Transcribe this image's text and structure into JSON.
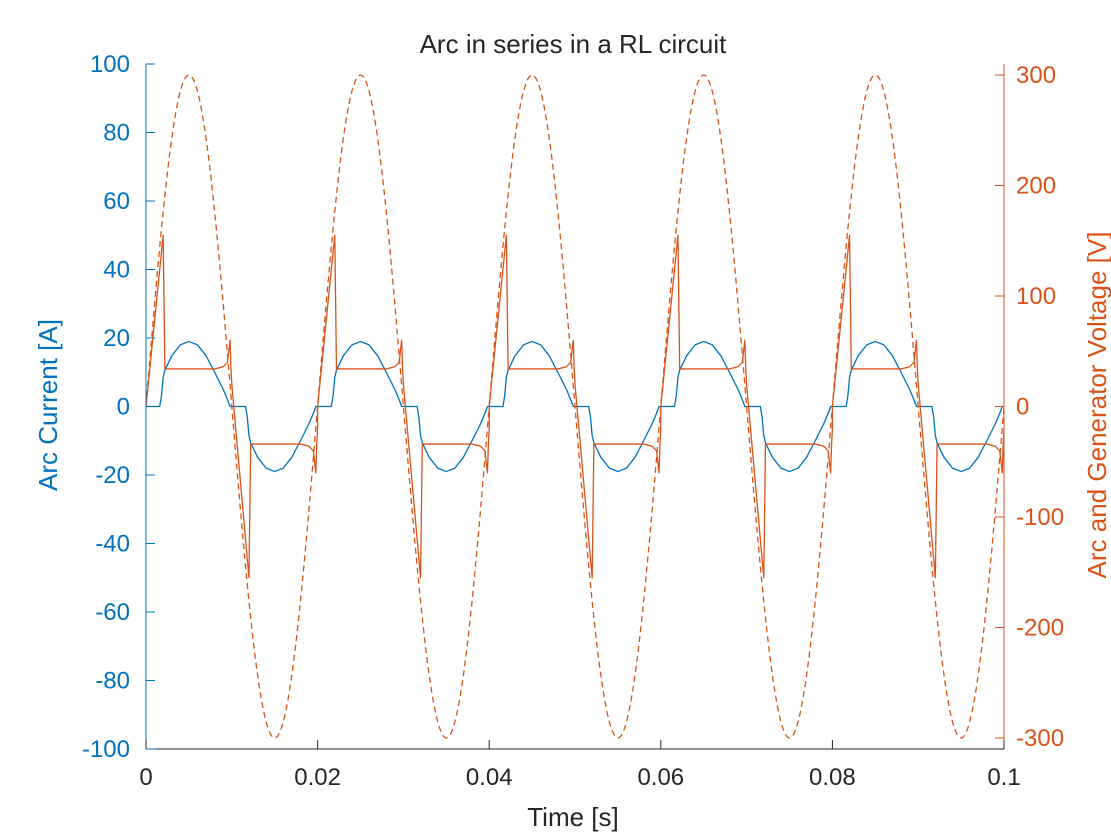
{
  "colors": {
    "current": "#0072BD",
    "voltage": "#D95319",
    "axis_x": "#262626",
    "background": "#ffffff"
  },
  "chart_data": {
    "type": "line",
    "title": "Arc in series in a RL circuit",
    "xlabel": "Time [s]",
    "ylabel_left": "Arc Current [A]",
    "ylabel_right": "Arc and Generator Voltage [V]",
    "xlim": [
      0,
      0.1
    ],
    "ylim_left": [
      -100,
      100
    ],
    "ylim_right": [
      -310,
      310
    ],
    "x_ticks": [
      0,
      0.02,
      0.04,
      0.06,
      0.08,
      0.1
    ],
    "x_tick_labels": [
      "0",
      "0.02",
      "0.04",
      "0.06",
      "0.08",
      "0.1"
    ],
    "left_ticks": [
      -100,
      -80,
      -60,
      -40,
      -20,
      0,
      20,
      40,
      60,
      80,
      100
    ],
    "left_tick_labels": [
      "-100",
      "-80",
      "-60",
      "-40",
      "-20",
      "0",
      "20",
      "40",
      "60",
      "80",
      "100"
    ],
    "right_ticks": [
      -300,
      -200,
      -100,
      0,
      100,
      200,
      300
    ],
    "right_tick_labels": [
      "-300",
      "-200",
      "-100",
      "0",
      "100",
      "200",
      "300"
    ],
    "grid": false,
    "legend": "none",
    "period_s": 0.02,
    "series": [
      {
        "axis": "left",
        "style": "solid",
        "color_key": "current",
        "points_one_period": [
          [
            0.0,
            0
          ],
          [
            0.0016,
            0
          ],
          [
            0.0018,
            3
          ],
          [
            0.002,
            8.5
          ],
          [
            0.0022,
            10.6
          ],
          [
            0.003,
            14.8
          ],
          [
            0.004,
            18.0
          ],
          [
            0.005,
            19.0
          ],
          [
            0.006,
            18.0
          ],
          [
            0.007,
            14.8
          ],
          [
            0.008,
            10.0
          ],
          [
            0.009,
            5.0
          ],
          [
            0.0095,
            2.0
          ],
          [
            0.0098,
            0
          ],
          [
            0.0116,
            0
          ],
          [
            0.0118,
            -3
          ],
          [
            0.012,
            -8.5
          ],
          [
            0.0122,
            -10.6
          ],
          [
            0.013,
            -14.8
          ],
          [
            0.014,
            -18.0
          ],
          [
            0.015,
            -19.0
          ],
          [
            0.016,
            -18.0
          ],
          [
            0.017,
            -14.8
          ],
          [
            0.018,
            -10.0
          ],
          [
            0.019,
            -5.0
          ],
          [
            0.0195,
            -2.0
          ],
          [
            0.0198,
            0
          ],
          [
            0.02,
            0
          ]
        ]
      },
      {
        "axis": "right",
        "style": "solid",
        "color_key": "voltage",
        "points_one_period": [
          [
            0.0,
            0
          ],
          [
            0.002,
            155
          ],
          [
            0.0022,
            34
          ],
          [
            0.008,
            34
          ],
          [
            0.009,
            36
          ],
          [
            0.0095,
            40
          ],
          [
            0.0098,
            60
          ],
          [
            0.0099,
            35
          ],
          [
            0.01,
            20
          ],
          [
            0.012,
            -155
          ],
          [
            0.0122,
            -34
          ],
          [
            0.018,
            -34
          ],
          [
            0.019,
            -36
          ],
          [
            0.0195,
            -40
          ],
          [
            0.0198,
            -60
          ],
          [
            0.0199,
            -35
          ],
          [
            0.02,
            -20
          ]
        ]
      },
      {
        "axis": "right",
        "style": "dashed",
        "color_key": "voltage",
        "function": "300*sin(2*pi*50*t)"
      }
    ]
  }
}
